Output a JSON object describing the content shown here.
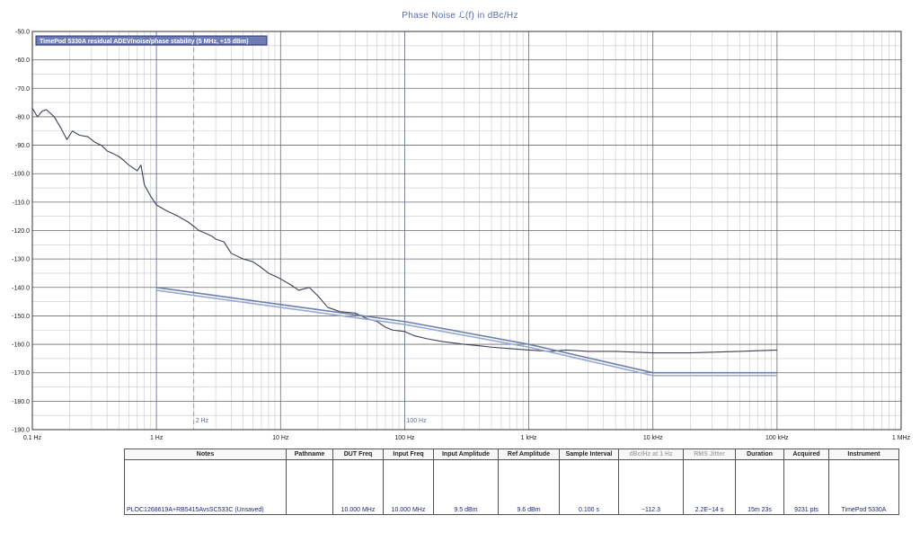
{
  "chart_data": {
    "type": "line",
    "title": "Phase  Noise ℒ(f) in dBc/Hz",
    "xscale": "log",
    "xlim": [
      0.1,
      1000000
    ],
    "ylim": [
      -190,
      -50
    ],
    "x_ticks": [
      {
        "value": 0.1,
        "label": "0.1 Hz"
      },
      {
        "value": 1,
        "label": "1 Hz"
      },
      {
        "value": 10,
        "label": "10 Hz"
      },
      {
        "value": 100,
        "label": "100 Hz"
      },
      {
        "value": 1000,
        "label": "1 kHz"
      },
      {
        "value": 10000,
        "label": "10 kHz"
      },
      {
        "value": 100000,
        "label": "100 kHz"
      },
      {
        "value": 1000000,
        "label": "1 MHz"
      }
    ],
    "y_ticks": [
      {
        "value": -50,
        "label": "-50.0"
      },
      {
        "value": -60,
        "label": "-60.0"
      },
      {
        "value": -70,
        "label": "-70.0"
      },
      {
        "value": -80,
        "label": "-80.0"
      },
      {
        "value": -90,
        "label": "-90.0"
      },
      {
        "value": -100,
        "label": "-100.0"
      },
      {
        "value": -110,
        "label": "-110.0"
      },
      {
        "value": -120,
        "label": "-120.0"
      },
      {
        "value": -130,
        "label": "-130.0"
      },
      {
        "value": -140,
        "label": "-140.0"
      },
      {
        "value": -150,
        "label": "-150.0"
      },
      {
        "value": -160,
        "label": "-160.0"
      },
      {
        "value": -170,
        "label": "-170.0"
      },
      {
        "value": -180,
        "label": "-180.0"
      },
      {
        "value": -190,
        "label": "-190.0"
      }
    ],
    "grid": true,
    "markers": [
      {
        "value": 1,
        "label": ""
      },
      {
        "value": 2,
        "label": "2 Hz"
      },
      {
        "value": 100,
        "label": "100 Hz"
      }
    ],
    "legend": {
      "position": "top-left",
      "text": "TimePod 5330A residual ADEV/noise/phase stability (5 MHz, +15 dBm)"
    },
    "series": [
      {
        "name": "",
        "color": "#3b4256",
        "points": [
          [
            0.1,
            -77
          ],
          [
            0.11,
            -80
          ],
          [
            0.12,
            -78
          ],
          [
            0.13,
            -77.5
          ],
          [
            0.15,
            -80
          ],
          [
            0.17,
            -84
          ],
          [
            0.19,
            -88
          ],
          [
            0.21,
            -85
          ],
          [
            0.24,
            -86.5
          ],
          [
            0.28,
            -87
          ],
          [
            0.32,
            -89
          ],
          [
            0.36,
            -90
          ],
          [
            0.4,
            -92
          ],
          [
            0.45,
            -93
          ],
          [
            0.5,
            -94
          ],
          [
            0.55,
            -95.5
          ],
          [
            0.6,
            -97
          ],
          [
            0.7,
            -99
          ],
          [
            0.75,
            -97
          ],
          [
            0.8,
            -104
          ],
          [
            0.85,
            -106
          ],
          [
            0.9,
            -108
          ],
          [
            1.0,
            -111
          ],
          [
            1.2,
            -113
          ],
          [
            1.5,
            -115
          ],
          [
            1.8,
            -117
          ],
          [
            2.0,
            -118.5
          ],
          [
            2.2,
            -120
          ],
          [
            2.5,
            -121
          ],
          [
            2.8,
            -122
          ],
          [
            3.0,
            -123
          ],
          [
            3.5,
            -124
          ],
          [
            4,
            -128
          ],
          [
            5,
            -130
          ],
          [
            6,
            -131
          ],
          [
            7,
            -133
          ],
          [
            8,
            -135
          ],
          [
            9,
            -136
          ],
          [
            10,
            -137
          ],
          [
            12,
            -139
          ],
          [
            14,
            -141
          ],
          [
            17,
            -140
          ],
          [
            20,
            -143
          ],
          [
            24,
            -147
          ],
          [
            30,
            -148.5
          ],
          [
            40,
            -149
          ],
          [
            50,
            -151
          ],
          [
            60,
            -152
          ],
          [
            70,
            -154
          ],
          [
            80,
            -155
          ],
          [
            100,
            -155.5
          ],
          [
            120,
            -157
          ],
          [
            150,
            -158
          ],
          [
            200,
            -159
          ],
          [
            300,
            -160
          ],
          [
            400,
            -160.5
          ],
          [
            500,
            -161
          ],
          [
            700,
            -161.5
          ],
          [
            1000,
            -162
          ],
          [
            1500,
            -162.5
          ],
          [
            2000,
            -162
          ],
          [
            3000,
            -162.5
          ],
          [
            5000,
            -162.5
          ],
          [
            10000,
            -163
          ],
          [
            20000,
            -163
          ],
          [
            50000,
            -162.5
          ],
          [
            100000,
            -162
          ]
        ]
      },
      {
        "name": "",
        "color": "#6d7fb0",
        "points": [
          [
            1,
            -140
          ],
          [
            10,
            -146
          ],
          [
            100,
            -152
          ],
          [
            1000,
            -160
          ],
          [
            10000,
            -170
          ],
          [
            100000,
            -170
          ]
        ]
      },
      {
        "name": "",
        "color": "#9aa8d4",
        "points": [
          [
            1,
            -141
          ],
          [
            10,
            -147
          ],
          [
            100,
            -153
          ],
          [
            1000,
            -161
          ],
          [
            10000,
            -171
          ],
          [
            100000,
            -171
          ]
        ]
      }
    ]
  },
  "table": {
    "headers": [
      {
        "text": "Notes",
        "dim": false
      },
      {
        "text": "Pathname",
        "dim": false
      },
      {
        "text": "DUT Freq",
        "dim": false
      },
      {
        "text": "Input Freq",
        "dim": false
      },
      {
        "text": "Input Amplitude",
        "dim": false
      },
      {
        "text": "Ref Amplitude",
        "dim": false
      },
      {
        "text": "Sample Interval",
        "dim": false
      },
      {
        "text": "dBc/Hz at 1 Hz",
        "dim": true
      },
      {
        "text": "RMS Jitter",
        "dim": true
      },
      {
        "text": "Duration",
        "dim": false
      },
      {
        "text": "Acquired",
        "dim": false
      },
      {
        "text": "Instrument",
        "dim": false
      }
    ],
    "active_row": {
      "notes": "PLOC1268619A+RB5415AvsSC533C (Unsaved)",
      "pathname": "",
      "dut_freq": "10.000 MHz",
      "input_freq": "10.000 MHz",
      "input_amplitude": "9.5 dBm",
      "ref_amplitude": "9.6 dBm",
      "sample_interval": "0.100 s",
      "dbc_at_1hz": "−112.3",
      "rms_jitter": "2.2E−14 s",
      "duration": "15m 23s",
      "acquired": "9231 pts",
      "instrument": "TimePod 5330A"
    }
  },
  "colors": {
    "grid_major": "#6a6a6a",
    "grid_minor": "#c8c8c8",
    "title": "#5d6aa8",
    "legend_bg": "#6e7bb5"
  }
}
